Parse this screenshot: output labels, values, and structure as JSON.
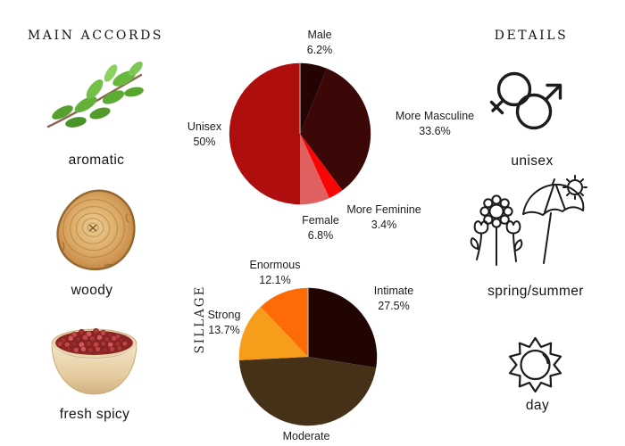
{
  "page_background": "#ffffff",
  "text_color": "#1a1a1a",
  "main_accords": {
    "title": "MAIN ACCORDS",
    "items": [
      {
        "label": "aromatic",
        "image": "green-herb-sprig-photo"
      },
      {
        "label": "woody",
        "image": "wood-log-slice-photo"
      },
      {
        "label": "fresh spicy",
        "image": "pink-peppercorns-bowl-photo"
      }
    ]
  },
  "details": {
    "title": "DETAILS",
    "items": [
      {
        "label": "unisex",
        "icon": "interlocked-gender-symbols-icon"
      },
      {
        "label": "spring/summer",
        "icon": "flowers-umbrella-sun-icon"
      },
      {
        "label": "day",
        "icon": "sun-outline-icon"
      }
    ]
  },
  "chart_data": [
    {
      "type": "pie",
      "name": "gender",
      "title": "",
      "categories": [
        "Male",
        "More Masculine",
        "More Feminine",
        "Female",
        "Unisex"
      ],
      "values": [
        6.2,
        33.6,
        3.4,
        6.8,
        50
      ],
      "colors": [
        "#240303",
        "#3c0707",
        "#f80606",
        "#e06060",
        "#ae0e0e"
      ],
      "slice_labels": [
        {
          "name": "Male",
          "pct": "6.2%"
        },
        {
          "name": "More Masculine",
          "pct": "33.6%"
        },
        {
          "name": "More Feminine",
          "pct": "3.4%"
        },
        {
          "name": "Female",
          "pct": "6.8%"
        },
        {
          "name": "Unisex",
          "pct": "50%"
        }
      ],
      "start_angle_deg": 0,
      "direction": "clockwise",
      "divider_line_color": "#bdbdbd",
      "legend_position": "outside-radial-labels"
    },
    {
      "type": "pie",
      "name": "sillage",
      "axis_title": "SILLAGE",
      "categories": [
        "Intimate",
        "Moderate",
        "Strong",
        "Enormous"
      ],
      "values": [
        27.5,
        46.7,
        13.7,
        12.1
      ],
      "colors": [
        "#200502",
        "#443118",
        "#f89c1b",
        "#fc6b06"
      ],
      "slice_labels": [
        {
          "name": "Intimate",
          "pct": "27.5%"
        },
        {
          "name": "Moderate",
          "pct": ""
        },
        {
          "name": "Strong",
          "pct": "13.7%"
        },
        {
          "name": "Enormous",
          "pct": "12.1%"
        }
      ],
      "note": "Moderate slice value estimated from slice angle (remainder of 100%); its percent label is cut off at the bottom edge of the screenshot",
      "start_angle_deg": 0,
      "direction": "clockwise",
      "divider_line_color": "#bdbdbd",
      "legend_position": "outside-radial-labels"
    }
  ]
}
